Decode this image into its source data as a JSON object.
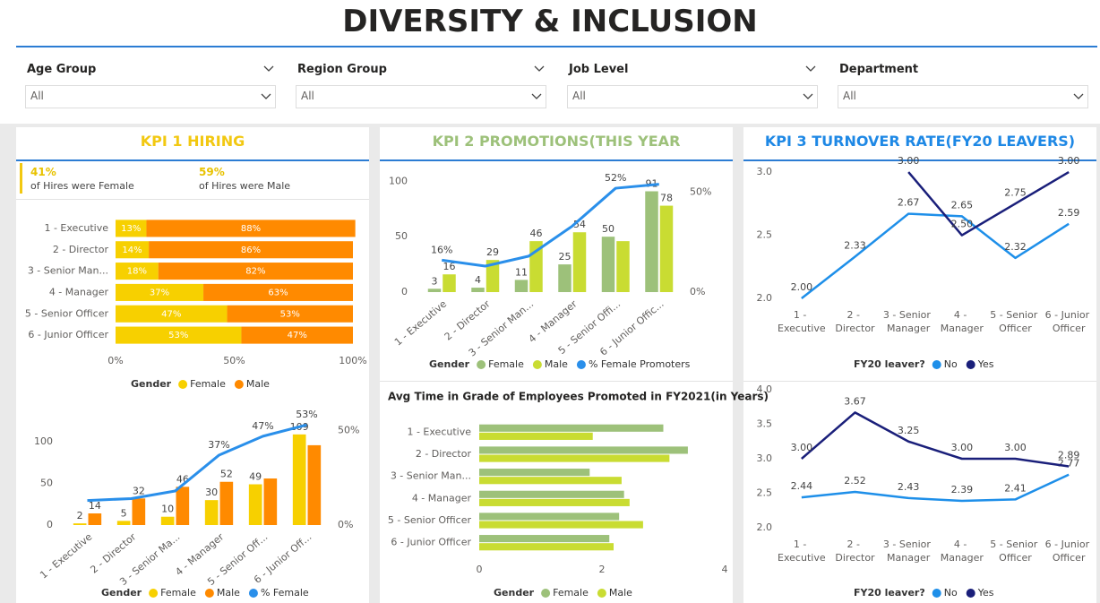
{
  "header": {
    "title": "DIVERSITY & INCLUSION"
  },
  "filters": [
    {
      "label": "Age Group",
      "value": "All"
    },
    {
      "label": "Region Group",
      "value": "All"
    },
    {
      "label": "Job Level",
      "value": "All"
    },
    {
      "label": "Department",
      "value": "All"
    }
  ],
  "panels": [
    {
      "title": "KPI 1 HIRING",
      "color": "#F2C811"
    },
    {
      "title": "KPI 2 PROMOTIONS(THIS YEAR",
      "color": "#9DC17A"
    },
    {
      "title": "KPI 3 TURNOVER RATE(FY20 LEAVERS)",
      "color": "#1E88E5"
    }
  ],
  "kpi_cards": [
    {
      "value": "41%",
      "label": "of Hires were Female"
    },
    {
      "value": "59%",
      "label": "of Hires were Male"
    }
  ],
  "chart_data": [
    {
      "type": "stacked_hbar",
      "categories": [
        "1 - Executive",
        "2 - Director",
        "3 - Senior Man...",
        "4 - Manager",
        "5 - Senior Officer",
        "6 - Junior Officer"
      ],
      "series": [
        {
          "name": "Female",
          "color": "#F7D000",
          "values": [
            13,
            14,
            18,
            37,
            47,
            53
          ],
          "value_labels": [
            "13%",
            "14%",
            "18%",
            "37%",
            "47%",
            "53%"
          ]
        },
        {
          "name": "Male",
          "color": "#FF8A00",
          "values": [
            88,
            86,
            82,
            63,
            53,
            47
          ],
          "value_labels": [
            "88%",
            "86%",
            "82%",
            "63%",
            "53%",
            "47%"
          ]
        }
      ],
      "xlim": [
        0,
        100
      ],
      "xticks": [
        {
          "value": 0,
          "label": "0%"
        },
        {
          "value": 50,
          "label": "50%"
        },
        {
          "value": 100,
          "label": "100%"
        }
      ],
      "legend_title": "Gender"
    },
    {
      "type": "combo",
      "categories": [
        "1 - Executive",
        "2 - Director",
        "3 - Senior Ma...",
        "4 - Manager",
        "5 - Senior Off...",
        "6 - Junior Off..."
      ],
      "series": [
        {
          "name": "Female",
          "color": "#F7D000",
          "values": [
            2,
            5,
            10,
            30,
            49,
            109
          ]
        },
        {
          "name": "Male",
          "color": "#FF8A00",
          "values": [
            14,
            32,
            46,
            52,
            56,
            96
          ],
          "value_labels": [
            "14",
            "32",
            "46",
            "52",
            null,
            null
          ]
        },
        {
          "name": "% Female",
          "color": "#2A8FEA",
          "axis": "y2",
          "values": [
            13,
            14,
            18,
            37,
            47,
            53
          ],
          "value_labels": [
            null,
            null,
            null,
            "37%",
            "47%",
            "53%"
          ]
        }
      ],
      "ylim": [
        0,
        125
      ],
      "yticks": [
        0,
        50,
        100
      ],
      "y2lim": [
        0,
        55
      ],
      "y2ticks": [
        {
          "value": 0,
          "label": "0%"
        },
        {
          "value": 50,
          "label": "50%"
        }
      ],
      "legend_title": "Gender"
    },
    {
      "type": "combo",
      "categories": [
        "1 - Executive",
        "2 - Director",
        "3 - Senior Man...",
        "4 - Manager",
        "5 - Senior Offi...",
        "6 - Junior Offic..."
      ],
      "series": [
        {
          "name": "Female",
          "color": "#9DC17A",
          "values": [
            3,
            4,
            11,
            25,
            50,
            91
          ]
        },
        {
          "name": "Male",
          "color": "#C9DC32",
          "values": [
            16,
            29,
            46,
            54,
            46,
            78
          ],
          "value_labels": [
            "16",
            "29",
            "46",
            "54",
            null,
            "78"
          ]
        },
        {
          "name": "% Female Promoters",
          "color": "#2A8FEA",
          "axis": "y2",
          "values": [
            16,
            13,
            18,
            33,
            52,
            54
          ],
          "value_labels": [
            "16%",
            null,
            null,
            null,
            "52%",
            null
          ]
        }
      ],
      "ylim": [
        0,
        110
      ],
      "yticks": [
        0,
        50,
        100
      ],
      "y2lim": [
        0,
        61
      ],
      "y2ticks": [
        {
          "value": 0,
          "label": "0%"
        },
        {
          "value": 50,
          "label": "50%"
        }
      ],
      "legend_title": "Gender"
    },
    {
      "type": "grouped_hbar",
      "title": "Avg Time in Grade of Employees Promoted in FY2021(in Years)",
      "categories": [
        "1 - Executive",
        "2 - Director",
        "3 - Senior Man...",
        "4 - Manager",
        "5 - Senior Officer",
        "6 - Junior Officer"
      ],
      "series": [
        {
          "name": "Female",
          "color": "#9DC17A",
          "values": [
            3.0,
            3.4,
            1.8,
            2.36,
            2.28,
            2.12
          ]
        },
        {
          "name": "Male",
          "color": "#C9DC32",
          "values": [
            1.85,
            3.1,
            2.32,
            2.45,
            2.67,
            2.19
          ]
        }
      ],
      "xlim": [
        0,
        4
      ],
      "xticks": [
        0,
        2,
        4
      ],
      "legend_title": "Gender"
    },
    {
      "type": "line",
      "categories": [
        "1 - Executive",
        "2 - Director",
        "3 - Senior Manager",
        "4 - Manager",
        "5 - Senior Officer",
        "6 - Junior Officer"
      ],
      "series": [
        {
          "name": "No",
          "color": "#1E8FE9",
          "values": [
            2.0,
            2.33,
            2.67,
            2.65,
            2.32,
            2.59
          ],
          "value_labels": [
            "2.00",
            "2.33",
            "2.67",
            "2.65",
            "2.32",
            "2.59"
          ]
        },
        {
          "name": "Yes",
          "color": "#1A1F7A",
          "values": [
            null,
            null,
            3.0,
            2.5,
            2.75,
            3.0
          ],
          "value_labels": [
            null,
            null,
            "3.00",
            "2.50",
            "2.75",
            "3.00"
          ]
        }
      ],
      "ylim": [
        2.0,
        3.05
      ],
      "yticks": [
        {
          "value": 2.0,
          "label": "2.0"
        },
        {
          "value": 2.5,
          "label": "2.5"
        },
        {
          "value": 3.0,
          "label": "3.0"
        }
      ],
      "legend_title": "FY20 leaver?"
    },
    {
      "type": "line",
      "categories": [
        "1 - Executive",
        "2 - Director",
        "3 - Senior Manager",
        "4 - Manager",
        "5 - Senior Officer",
        "6 - Junior Officer"
      ],
      "series": [
        {
          "name": "No",
          "color": "#1E8FE9",
          "values": [
            2.44,
            2.52,
            2.43,
            2.39,
            2.41,
            2.77
          ],
          "value_labels": [
            "2.44",
            "2.52",
            "2.43",
            "2.39",
            "2.41",
            "2.77"
          ]
        },
        {
          "name": "Yes",
          "color": "#1A1F7A",
          "values": [
            3.0,
            3.67,
            3.25,
            3.0,
            3.0,
            2.89
          ],
          "value_labels": [
            "3.00",
            "3.67",
            "3.25",
            "3.00",
            "3.00",
            "2.89"
          ]
        }
      ],
      "ylim": [
        2.0,
        4.0
      ],
      "yticks": [
        {
          "value": 2.0,
          "label": "2.0"
        },
        {
          "value": 2.5,
          "label": "2.5"
        },
        {
          "value": 3.0,
          "label": "3.0"
        },
        {
          "value": 3.5,
          "label": "3.5"
        },
        {
          "value": 4.0,
          "label": "4.0"
        }
      ],
      "legend_title": "FY20 leaver?"
    }
  ]
}
